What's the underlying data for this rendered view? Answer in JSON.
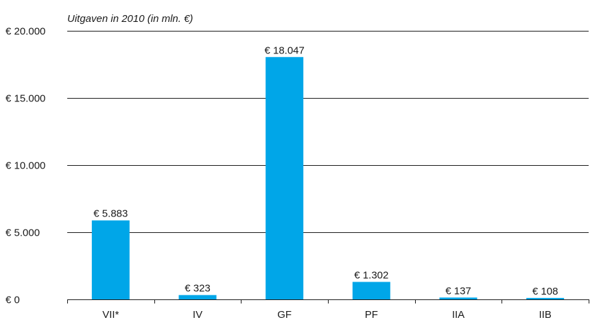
{
  "chart_data": {
    "type": "bar",
    "ylabel": "Uitgaven in 2010 (in mln. €)",
    "categories": [
      "VII*",
      "IV",
      "GF",
      "PF",
      "IIA",
      "IIB"
    ],
    "values": [
      5883,
      323,
      18047,
      1302,
      137,
      108
    ],
    "value_labels": [
      "€ 5.883",
      "€ 323",
      "€ 18.047",
      "€ 1.302",
      "€ 137",
      "€ 108"
    ],
    "ylim": [
      0,
      20000
    ],
    "yticks": [
      0,
      5000,
      10000,
      15000,
      20000
    ],
    "ytick_labels": [
      "€ 0",
      "€ 5.000",
      "€ 10.000",
      "€ 15.000",
      "€ 20.000"
    ],
    "grid": true,
    "bar_color": "#00a6e8"
  }
}
